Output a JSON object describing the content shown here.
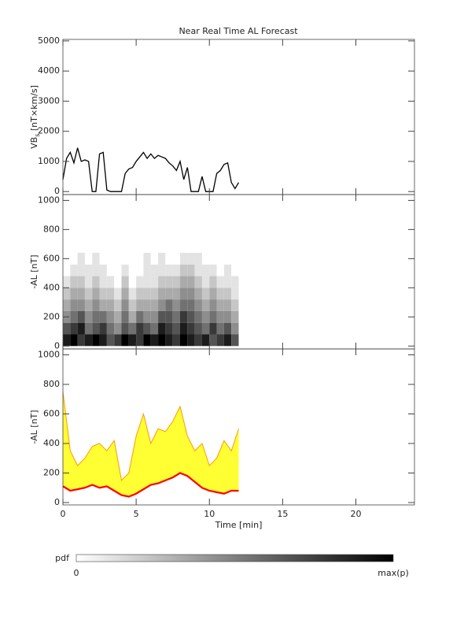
{
  "chart_data": [
    {
      "type": "line",
      "title": "Near Real Time AL Forecast",
      "ylabel": "VB",
      "ylabel_sub": "s",
      "ylabel_unit": " [nT×km/s]",
      "xlim": [
        0,
        24
      ],
      "xticks": [
        0,
        5,
        10,
        15,
        20
      ],
      "xtick_labels": false,
      "ylim": [
        -100,
        5050
      ],
      "yticks": [
        0,
        1000,
        2000,
        3000,
        4000,
        5000
      ],
      "color": "#000000",
      "x": [
        0,
        0.25,
        0.5,
        0.75,
        1,
        1.25,
        1.5,
        1.75,
        2,
        2.25,
        2.5,
        2.75,
        3,
        3.25,
        3.5,
        3.75,
        4,
        4.25,
        4.5,
        4.75,
        5,
        5.25,
        5.5,
        5.75,
        6,
        6.25,
        6.5,
        6.75,
        7,
        7.25,
        7.5,
        7.75,
        8,
        8.25,
        8.5,
        8.75,
        9,
        9.25,
        9.5,
        9.75,
        10,
        10.25,
        10.5,
        10.75,
        11,
        11.25,
        11.5,
        11.75,
        12
      ],
      "values": [
        400,
        1100,
        1300,
        950,
        1450,
        1000,
        1050,
        1000,
        0,
        0,
        1250,
        1300,
        50,
        0,
        0,
        0,
        0,
        600,
        750,
        800,
        1000,
        1150,
        1300,
        1100,
        1250,
        1100,
        1200,
        1150,
        1100,
        950,
        850,
        700,
        1000,
        400,
        800,
        0,
        0,
        0,
        500,
        0,
        0,
        0,
        600,
        700,
        900,
        950,
        300,
        100,
        300
      ]
    },
    {
      "type": "heatmap",
      "ylabel": "-AL [nT]",
      "xlim": [
        0,
        24
      ],
      "xticks": [
        0,
        5,
        10,
        15,
        20
      ],
      "xtick_labels": false,
      "ylim": [
        -20,
        1040
      ],
      "yticks": [
        0,
        200,
        400,
        600,
        800,
        1000
      ],
      "x_bins": [
        0,
        0.5,
        1,
        1.5,
        2,
        2.5,
        3,
        3.5,
        4,
        4.5,
        5,
        5.5,
        6,
        6.5,
        7,
        7.5,
        8,
        8.5,
        9,
        9.5,
        10,
        10.5,
        11,
        11.5,
        12
      ],
      "y_bins": [
        0,
        80,
        160,
        240,
        320,
        400,
        480,
        560,
        640
      ],
      "vmax": 9,
      "values": [
        [
          8,
          9,
          7,
          8,
          9,
          8,
          6,
          7,
          9,
          8,
          7,
          9,
          8,
          9,
          8,
          7,
          9,
          8,
          7,
          8,
          6,
          7,
          8,
          6
        ],
        [
          6,
          7,
          8,
          5,
          6,
          7,
          5,
          4,
          6,
          5,
          7,
          6,
          5,
          8,
          7,
          6,
          8,
          7,
          6,
          5,
          7,
          5,
          6,
          4
        ],
        [
          4,
          5,
          6,
          4,
          5,
          5,
          4,
          3,
          5,
          3,
          5,
          4,
          4,
          6,
          6,
          5,
          7,
          6,
          5,
          4,
          5,
          4,
          4,
          3
        ],
        [
          3,
          4,
          4,
          3,
          4,
          3,
          3,
          2,
          4,
          2,
          3,
          3,
          3,
          4,
          5,
          4,
          5,
          5,
          4,
          3,
          4,
          3,
          3,
          2
        ],
        [
          2,
          3,
          3,
          2,
          3,
          2,
          2,
          1,
          3,
          1,
          2,
          2,
          2,
          3,
          3,
          3,
          4,
          4,
          3,
          2,
          3,
          2,
          2,
          1
        ],
        [
          1,
          2,
          2,
          1,
          2,
          1,
          1,
          0,
          2,
          0,
          1,
          1,
          1,
          2,
          2,
          2,
          3,
          3,
          2,
          1,
          2,
          1,
          1,
          1
        ],
        [
          0,
          1,
          1,
          1,
          1,
          1,
          0,
          0,
          1,
          0,
          0,
          1,
          1,
          1,
          1,
          1,
          2,
          2,
          1,
          1,
          1,
          0,
          1,
          0
        ],
        [
          0,
          0,
          1,
          0,
          1,
          0,
          0,
          0,
          0,
          0,
          0,
          1,
          0,
          1,
          0,
          0,
          1,
          1,
          1,
          0,
          0,
          0,
          0,
          0
        ]
      ]
    },
    {
      "type": "band",
      "ylabel": "-AL [nT]",
      "xlabel": "Time [min]",
      "xlim": [
        0,
        24
      ],
      "xticks": [
        0,
        5,
        10,
        15,
        20
      ],
      "xtick_labels": true,
      "ylim": [
        -16,
        1040
      ],
      "yticks": [
        0,
        200,
        400,
        600,
        800,
        1000
      ],
      "band_color": "#ffff33",
      "edge_color": "#ff9900",
      "line_color": "#ff0000",
      "x": [
        0,
        0.5,
        1,
        1.5,
        2,
        2.5,
        3,
        3.5,
        4,
        4.5,
        5,
        5.5,
        6,
        6.5,
        7,
        7.5,
        8,
        8.5,
        9,
        9.5,
        10,
        10.5,
        11,
        11.5,
        12
      ],
      "upper": [
        750,
        350,
        250,
        300,
        380,
        400,
        350,
        420,
        150,
        200,
        450,
        600,
        400,
        500,
        480,
        550,
        650,
        450,
        350,
        400,
        250,
        300,
        420,
        350,
        500
      ],
      "median": [
        110,
        80,
        90,
        100,
        120,
        100,
        110,
        80,
        50,
        40,
        60,
        90,
        120,
        130,
        150,
        170,
        200,
        180,
        140,
        100,
        80,
        70,
        60,
        80,
        80
      ]
    }
  ],
  "colorbar": {
    "label": "pdf",
    "min": 0,
    "max_label": "max(p)"
  }
}
